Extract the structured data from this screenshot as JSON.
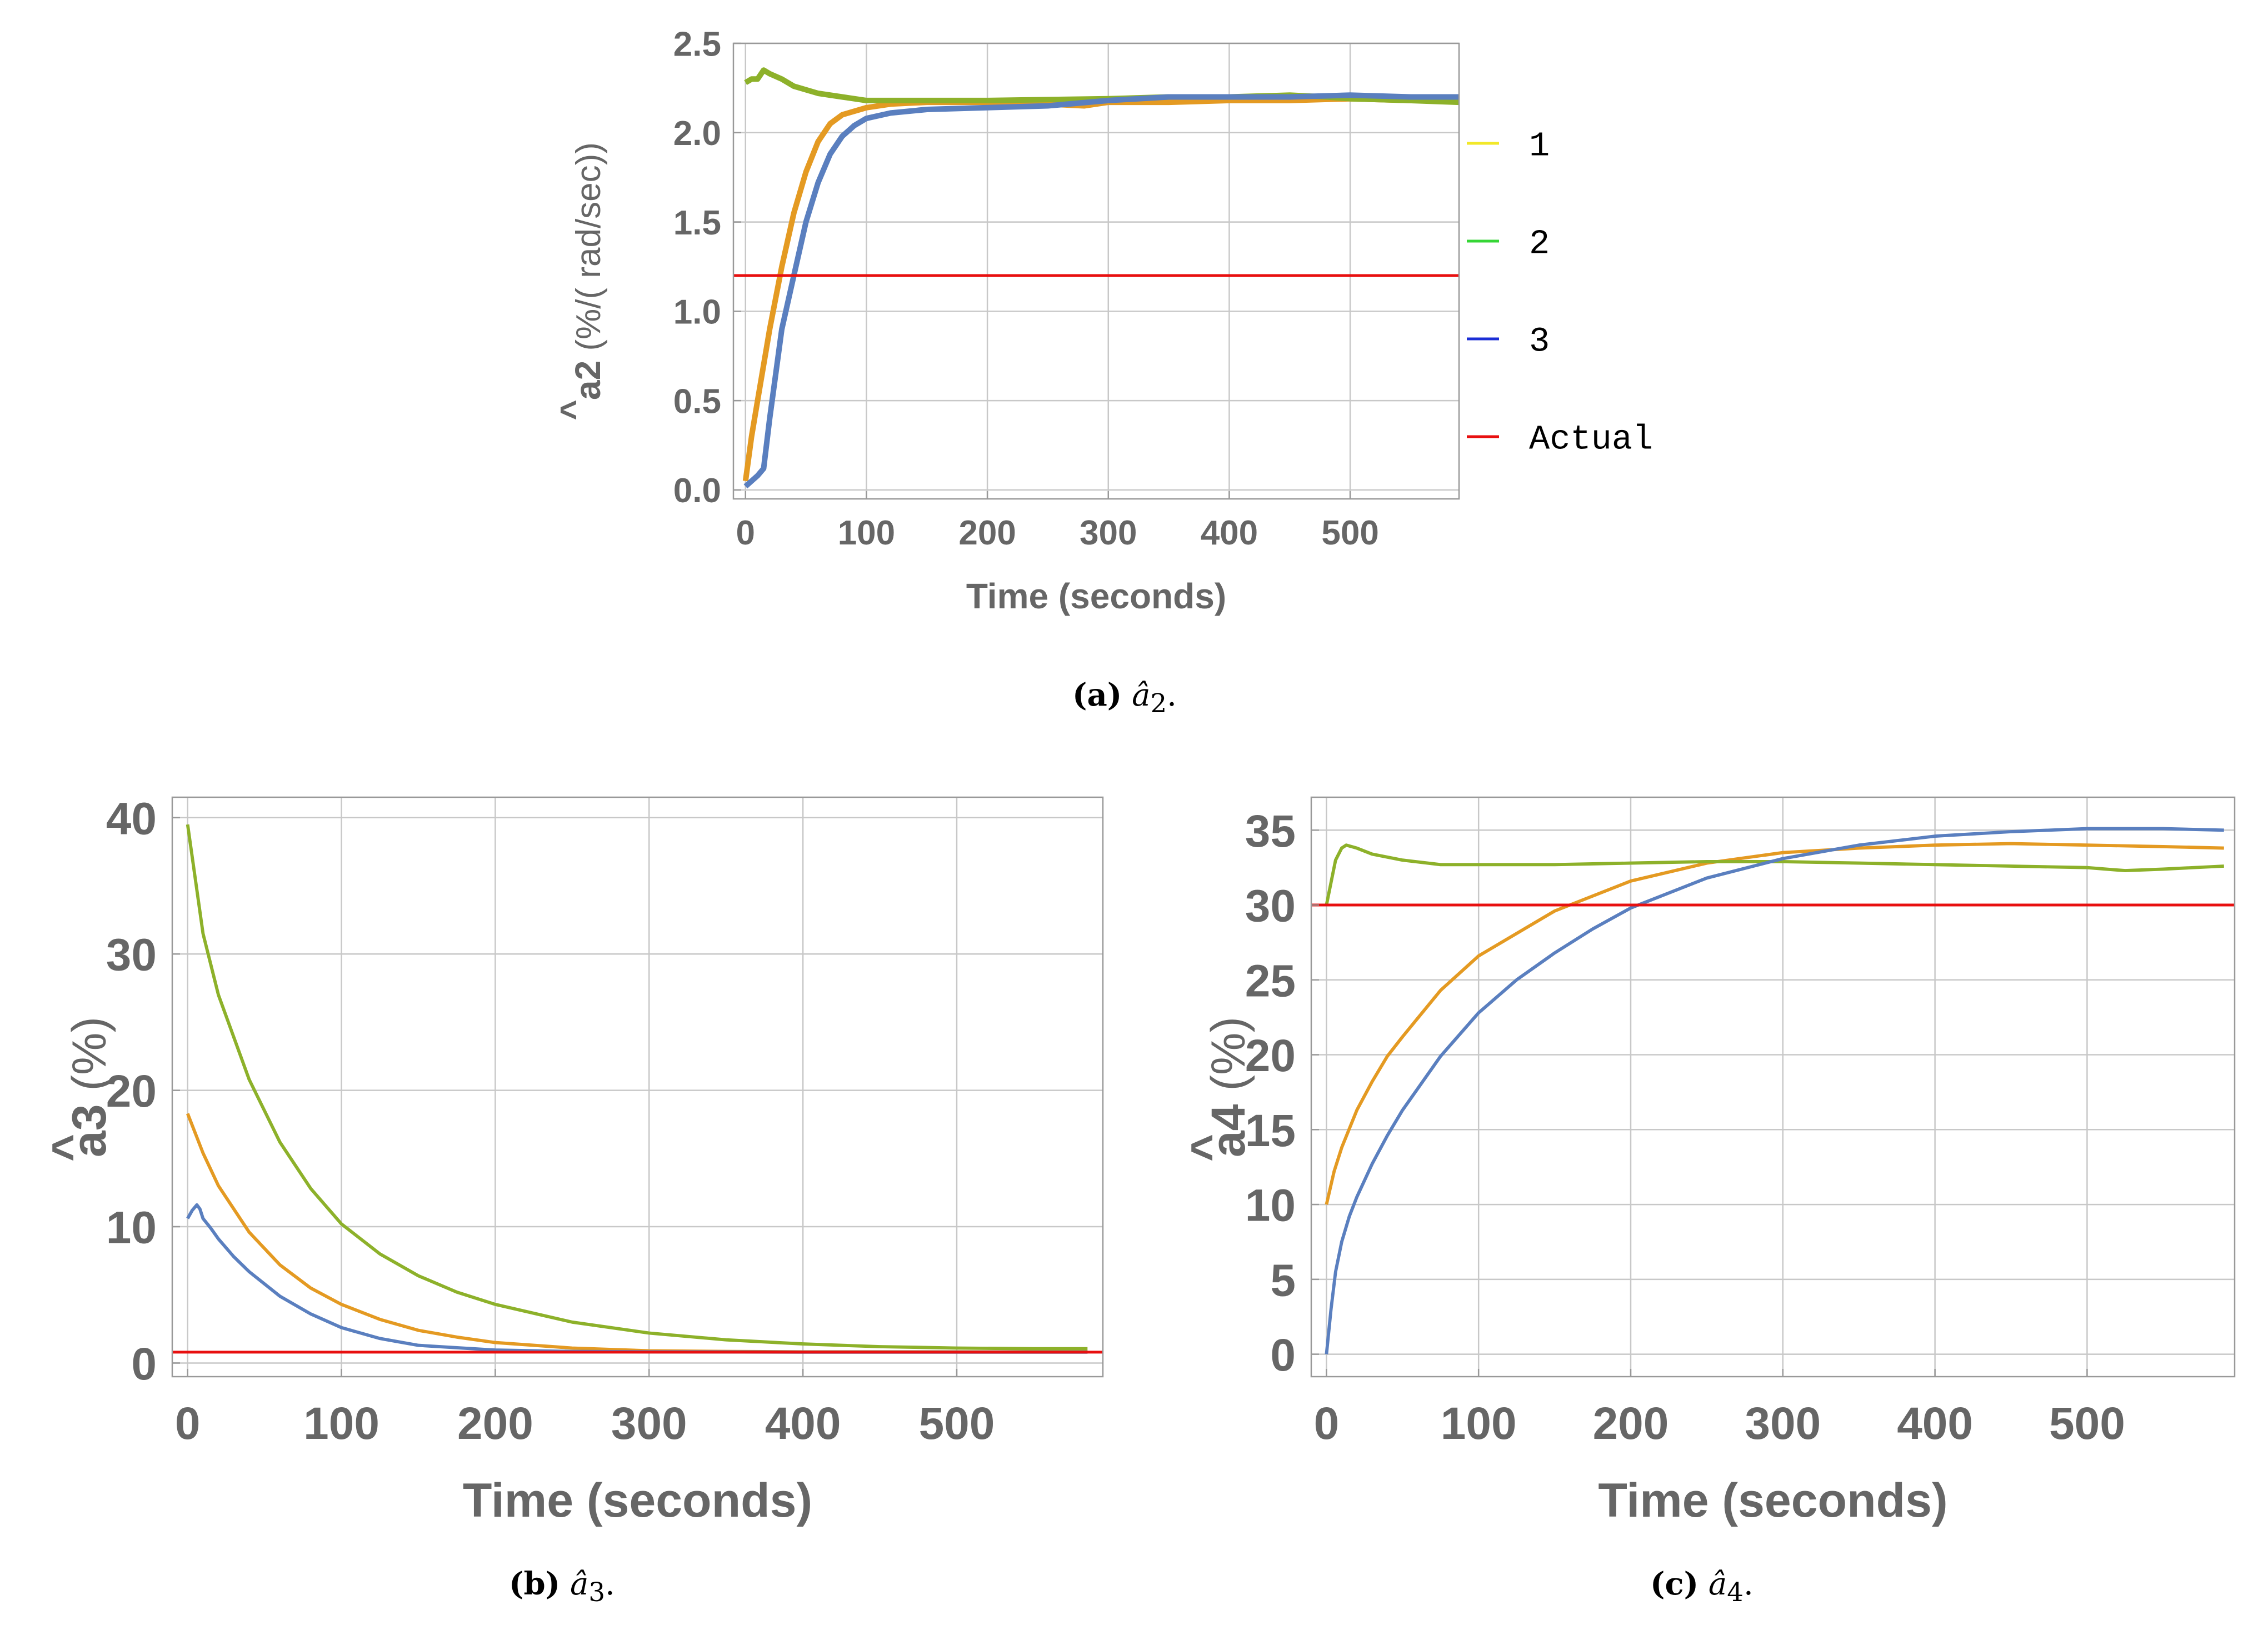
{
  "colors": {
    "series1": "#E49A22",
    "series2": "#8DB12A",
    "series3": "#5A7FBF",
    "actual": "#E81010",
    "legend1": "#F2E829",
    "legend2": "#36D636",
    "legend3": "#1B2ED6",
    "legend_actual": "#E81010",
    "axis": "#999999",
    "grid": "#C8C8C8",
    "text": "#666666"
  },
  "chart_data": [
    {
      "id": "a",
      "type": "line",
      "caption_label": "(a)",
      "caption_symbol": "â",
      "caption_sub": "2",
      "caption_end": ".",
      "ylabel_hat": "^",
      "ylabel_main": "a2",
      "ylabel_units": " (%/( rad/sec))",
      "xlabel_main": "Time",
      "xlabel_units": " (seconds)",
      "xlim": [
        -10,
        590
      ],
      "ylim": [
        -0.05,
        2.5
      ],
      "xticks": [
        0,
        100,
        200,
        300,
        400,
        500
      ],
      "xtick_labels": [
        "0",
        "100",
        "200",
        "300",
        "400",
        "500"
      ],
      "yticks": [
        0.0,
        0.5,
        1.0,
        1.5,
        2.0,
        2.5
      ],
      "ytick_labels": [
        "0.0",
        "0.5",
        "1.0",
        "1.5",
        "2.0",
        "2.5"
      ],
      "legend": [
        "1",
        "2",
        "3",
        "Actual"
      ],
      "actual_value": 1.2,
      "series": [
        {
          "name": "1",
          "x": [
            0,
            5,
            10,
            20,
            30,
            40,
            50,
            60,
            70,
            80,
            100,
            120,
            150,
            200,
            250,
            280,
            300,
            350,
            400,
            450,
            500,
            550,
            590
          ],
          "y": [
            0.05,
            0.3,
            0.5,
            0.9,
            1.25,
            1.55,
            1.78,
            1.95,
            2.05,
            2.1,
            2.14,
            2.16,
            2.17,
            2.17,
            2.16,
            2.15,
            2.17,
            2.17,
            2.18,
            2.18,
            2.19,
            2.18,
            2.18
          ]
        },
        {
          "name": "2",
          "x": [
            0,
            5,
            10,
            15,
            20,
            30,
            40,
            60,
            80,
            100,
            150,
            200,
            300,
            350,
            400,
            450,
            480,
            500,
            550,
            590
          ],
          "y": [
            2.28,
            2.3,
            2.3,
            2.35,
            2.33,
            2.3,
            2.26,
            2.22,
            2.2,
            2.18,
            2.18,
            2.18,
            2.19,
            2.2,
            2.2,
            2.21,
            2.2,
            2.19,
            2.18,
            2.17
          ]
        },
        {
          "name": "3",
          "x": [
            0,
            5,
            10,
            15,
            20,
            25,
            30,
            40,
            50,
            60,
            70,
            80,
            90,
            100,
            120,
            150,
            200,
            250,
            300,
            350,
            400,
            450,
            500,
            550,
            590
          ],
          "y": [
            0.02,
            0.05,
            0.08,
            0.12,
            0.4,
            0.65,
            0.9,
            1.2,
            1.5,
            1.72,
            1.88,
            1.98,
            2.04,
            2.08,
            2.11,
            2.13,
            2.14,
            2.15,
            2.18,
            2.2,
            2.2,
            2.2,
            2.21,
            2.2,
            2.2
          ]
        }
      ]
    },
    {
      "id": "b",
      "type": "line",
      "caption_label": "(b)",
      "caption_symbol": "â",
      "caption_sub": "3",
      "caption_end": ".",
      "ylabel_hat": "^",
      "ylabel_main": "a3",
      "ylabel_units": " (%)",
      "xlabel_main": "Time",
      "xlabel_units": " (seconds)",
      "xlim": [
        -10,
        595
      ],
      "ylim": [
        -1,
        41.5
      ],
      "xticks": [
        0,
        100,
        200,
        300,
        400,
        500
      ],
      "xtick_labels": [
        "0",
        "100",
        "200",
        "300",
        "400",
        "500"
      ],
      "yticks": [
        0,
        10,
        20,
        30,
        40
      ],
      "ytick_labels": [
        "0",
        "10",
        "20",
        "30",
        "40"
      ],
      "legend": [],
      "actual_value": 0.8,
      "series": [
        {
          "name": "1",
          "x": [
            0,
            10,
            20,
            40,
            60,
            80,
            100,
            125,
            150,
            175,
            200,
            250,
            300,
            350,
            400,
            450,
            500,
            550,
            585
          ],
          "y": [
            18.3,
            15.4,
            13.0,
            9.6,
            7.2,
            5.5,
            4.3,
            3.2,
            2.4,
            1.9,
            1.5,
            1.1,
            0.9,
            0.85,
            0.82,
            0.82,
            0.82,
            0.82,
            0.82
          ]
        },
        {
          "name": "2",
          "x": [
            0,
            10,
            20,
            40,
            60,
            80,
            100,
            125,
            150,
            175,
            200,
            250,
            300,
            350,
            400,
            450,
            500,
            550,
            585
          ],
          "y": [
            39.5,
            31.5,
            27.0,
            20.8,
            16.2,
            12.8,
            10.2,
            8.0,
            6.4,
            5.2,
            4.3,
            3.0,
            2.2,
            1.7,
            1.4,
            1.2,
            1.1,
            1.05,
            1.05
          ]
        },
        {
          "name": "3",
          "x": [
            0,
            3,
            6,
            8,
            10,
            15,
            20,
            30,
            40,
            60,
            80,
            100,
            125,
            150,
            200,
            250,
            300,
            400,
            500,
            585
          ],
          "y": [
            10.6,
            11.2,
            11.6,
            11.3,
            10.6,
            9.9,
            9.1,
            7.8,
            6.7,
            4.9,
            3.6,
            2.6,
            1.8,
            1.3,
            0.95,
            0.85,
            0.82,
            0.8,
            0.8,
            0.8
          ]
        }
      ]
    },
    {
      "id": "c",
      "type": "line",
      "caption_label": "(c)",
      "caption_symbol": "â",
      "caption_sub": "4",
      "caption_end": ".",
      "ylabel_hat": "^",
      "ylabel_main": "a4",
      "ylabel_units": " (%)",
      "xlabel_main": "Time",
      "xlabel_units": " (seconds)",
      "xlim": [
        -10,
        597
      ],
      "ylim": [
        -1.5,
        37.2
      ],
      "xticks": [
        0,
        100,
        200,
        300,
        400,
        500
      ],
      "xtick_labels": [
        "0",
        "100",
        "200",
        "300",
        "400",
        "500"
      ],
      "yticks": [
        0,
        5,
        10,
        15,
        20,
        25,
        30,
        35
      ],
      "ytick_labels": [
        "0",
        "5",
        "10",
        "15",
        "20",
        "25",
        "30",
        "35"
      ],
      "legend": [],
      "actual_value": 30,
      "series": [
        {
          "name": "1",
          "x": [
            0,
            5,
            10,
            20,
            30,
            40,
            50,
            75,
            100,
            150,
            200,
            250,
            300,
            350,
            400,
            450,
            500,
            550,
            590
          ],
          "y": [
            10.0,
            12.2,
            13.8,
            16.3,
            18.2,
            19.9,
            21.2,
            24.3,
            26.6,
            29.6,
            31.6,
            32.8,
            33.5,
            33.8,
            34.0,
            34.1,
            34.0,
            33.9,
            33.8
          ]
        },
        {
          "name": "2",
          "x": [
            0,
            3,
            6,
            10,
            13,
            20,
            30,
            50,
            75,
            100,
            150,
            200,
            250,
            300,
            350,
            400,
            450,
            500,
            525,
            550,
            590
          ],
          "y": [
            30.0,
            31.5,
            33.0,
            33.8,
            34.0,
            33.8,
            33.4,
            33.0,
            32.7,
            32.7,
            32.7,
            32.8,
            32.9,
            32.9,
            32.8,
            32.7,
            32.6,
            32.5,
            32.3,
            32.4,
            32.6
          ]
        },
        {
          "name": "3",
          "x": [
            0,
            3,
            6,
            10,
            15,
            20,
            30,
            40,
            50,
            75,
            100,
            125,
            150,
            175,
            200,
            250,
            300,
            350,
            400,
            450,
            500,
            550,
            590
          ],
          "y": [
            0.0,
            3.0,
            5.5,
            7.5,
            9.2,
            10.5,
            12.7,
            14.6,
            16.3,
            19.9,
            22.8,
            25.0,
            26.8,
            28.4,
            29.8,
            31.8,
            33.1,
            34.0,
            34.6,
            34.9,
            35.1,
            35.1,
            35.0
          ]
        }
      ]
    }
  ]
}
